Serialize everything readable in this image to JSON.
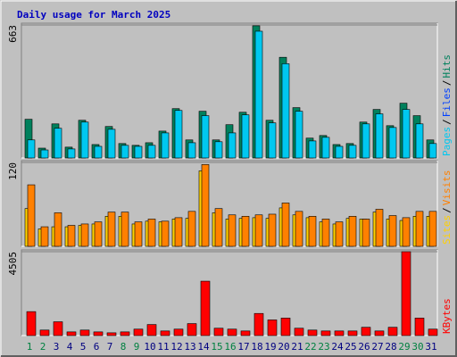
{
  "chart_data": [
    {
      "type": "bar",
      "title": "Daily usage for March 2025",
      "ylim": [
        0,
        663
      ],
      "yticks": [
        663
      ],
      "legend_separator": "/",
      "series": [
        {
          "name": "Hits",
          "color": "#00805c",
          "values": [
            193,
            49,
            170,
            54,
            188,
            67,
            157,
            72,
            63,
            76,
            134,
            246,
            90,
            233,
            90,
            166,
            228,
            659,
            188,
            502,
            251,
            99,
            112,
            67,
            72,
            179,
            242,
            161,
            273,
            211,
            90
          ]
        },
        {
          "name": "Pages",
          "color": "#00c8f0",
          "values": [
            90,
            40,
            148,
            45,
            179,
            58,
            143,
            63,
            58,
            63,
            125,
            237,
            76,
            211,
            81,
            125,
            215,
            632,
            175,
            470,
            233,
            85,
            103,
            58,
            63,
            170,
            220,
            152,
            242,
            170,
            72
          ]
        }
      ],
      "legend_only": [
        {
          "name": "Files",
          "color": "#0040ff"
        }
      ],
      "legend_order": [
        "Pages",
        "Files",
        "Hits"
      ]
    },
    {
      "type": "bar",
      "ylim": [
        0,
        120
      ],
      "yticks": [
        120
      ],
      "legend_separator": "/",
      "series": [
        {
          "name": "Sites",
          "color": "#ffd000",
          "values": [
            54,
            25,
            28,
            28,
            30,
            32,
            43,
            43,
            32,
            36,
            35,
            39,
            40,
            108,
            48,
            39,
            40,
            41,
            40,
            55,
            45,
            41,
            35,
            32,
            40,
            39,
            49,
            39,
            37,
            43,
            43
          ]
        },
        {
          "name": "Visits",
          "color": "#ff8000",
          "values": [
            88,
            28,
            48,
            30,
            32,
            35,
            49,
            49,
            35,
            39,
            36,
            41,
            50,
            117,
            54,
            45,
            43,
            45,
            46,
            62,
            50,
            43,
            39,
            35,
            43,
            39,
            53,
            44,
            41,
            50,
            50
          ]
        }
      ],
      "legend_order": [
        "Sites",
        "Visits"
      ]
    },
    {
      "type": "bar",
      "ylim": [
        0,
        4505
      ],
      "yticks": [
        4505
      ],
      "categories": [
        "1",
        "2",
        "3",
        "4",
        "5",
        "6",
        "7",
        "8",
        "9",
        "10",
        "11",
        "12",
        "13",
        "14",
        "15",
        "16",
        "17",
        "18",
        "19",
        "20",
        "21",
        "22",
        "23",
        "24",
        "25",
        "26",
        "27",
        "28",
        "29",
        "30",
        "31"
      ],
      "category_colors": [
        "#008040",
        "#008040",
        "#000080",
        "#000080",
        "#000080",
        "#000080",
        "#000080",
        "#008040",
        "#008040",
        "#000080",
        "#000080",
        "#000080",
        "#000080",
        "#000080",
        "#008040",
        "#008040",
        "#000080",
        "#000080",
        "#000080",
        "#000080",
        "#000080",
        "#008040",
        "#008040",
        "#000080",
        "#000080",
        "#000080",
        "#000080",
        "#000080",
        "#008040",
        "#008040",
        "#000080"
      ],
      "series": [
        {
          "name": "KBytes",
          "color": "#ff0000",
          "values": [
            1287,
            297,
            742,
            198,
            297,
            198,
            149,
            198,
            347,
            594,
            248,
            347,
            644,
            2921,
            396,
            347,
            248,
            1188,
            842,
            941,
            396,
            297,
            248,
            248,
            248,
            446,
            248,
            446,
            4505,
            941,
            347
          ]
        }
      ],
      "legend_order": [
        "KBytes"
      ]
    }
  ]
}
